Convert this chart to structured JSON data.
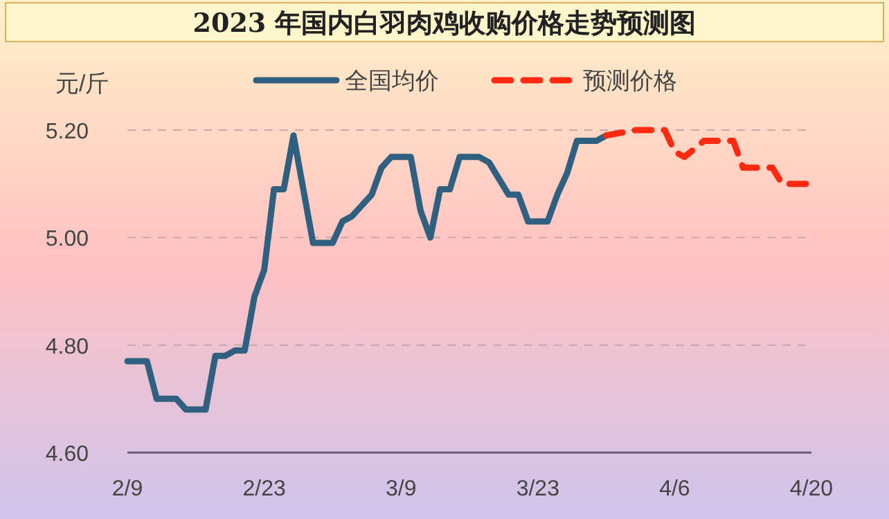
{
  "chart_data": {
    "type": "line",
    "title": "2023 年国内白羽肉鸡收购价格走势预测图",
    "ylabel": "元/斤",
    "series": [
      {
        "name": "全国均价",
        "color": "#2f6080",
        "line_style": "solid",
        "x": [
          "2023-02-09",
          "2023-02-11",
          "2023-02-12",
          "2023-02-14",
          "2023-02-15",
          "2023-02-17",
          "2023-02-18",
          "2023-02-19",
          "2023-02-20",
          "2023-02-21",
          "2023-02-22",
          "2023-02-23",
          "2023-02-24",
          "2023-02-25",
          "2023-02-26",
          "2023-02-28",
          "2023-03-02",
          "2023-03-03",
          "2023-03-04",
          "2023-03-05",
          "2023-03-06",
          "2023-03-07",
          "2023-03-08",
          "2023-03-10",
          "2023-03-11",
          "2023-03-12",
          "2023-03-13",
          "2023-03-14",
          "2023-03-15",
          "2023-03-17",
          "2023-03-18",
          "2023-03-19",
          "2023-03-20",
          "2023-03-21",
          "2023-03-22",
          "2023-03-24",
          "2023-03-25",
          "2023-03-26",
          "2023-03-27",
          "2023-03-29",
          "2023-03-30"
        ],
        "values": [
          4.77,
          4.77,
          4.7,
          4.7,
          4.68,
          4.68,
          4.78,
          4.78,
          4.79,
          4.79,
          4.89,
          4.94,
          5.09,
          5.09,
          5.19,
          4.99,
          4.99,
          5.03,
          5.04,
          5.06,
          5.08,
          5.13,
          5.15,
          5.15,
          5.05,
          5.0,
          5.09,
          5.09,
          5.15,
          5.15,
          5.14,
          5.11,
          5.08,
          5.08,
          5.03,
          5.03,
          5.08,
          5.12,
          5.18,
          5.18,
          5.19
        ]
      },
      {
        "name": "预测价格",
        "color": "#ff2a10",
        "line_style": "dashed",
        "x": [
          "2023-03-30",
          "2023-04-02",
          "2023-04-05",
          "2023-04-06",
          "2023-04-07",
          "2023-04-09",
          "2023-04-12",
          "2023-04-13",
          "2023-04-16",
          "2023-04-17",
          "2023-04-20"
        ],
        "values": [
          5.19,
          5.2,
          5.2,
          5.16,
          5.15,
          5.18,
          5.18,
          5.13,
          5.13,
          5.1,
          5.1
        ]
      }
    ],
    "xlim": [
      "2023-02-09",
      "2023-04-20"
    ],
    "xticks": [
      {
        "value": "2023-02-09",
        "label": "2/9"
      },
      {
        "value": "2023-02-23",
        "label": "2/23"
      },
      {
        "value": "2023-03-09",
        "label": "3/9"
      },
      {
        "value": "2023-03-23",
        "label": "3/23"
      },
      {
        "value": "2023-04-06",
        "label": "4/6"
      },
      {
        "value": "2023-04-20",
        "label": "4/20"
      }
    ],
    "ylim": [
      4.6,
      5.2
    ],
    "yticks": [
      {
        "value": 4.6,
        "label": "4.60"
      },
      {
        "value": 4.8,
        "label": "4.80"
      },
      {
        "value": 5.0,
        "label": "5.00"
      },
      {
        "value": 5.2,
        "label": "5.20"
      }
    ],
    "grid": "y",
    "legend": "top"
  }
}
